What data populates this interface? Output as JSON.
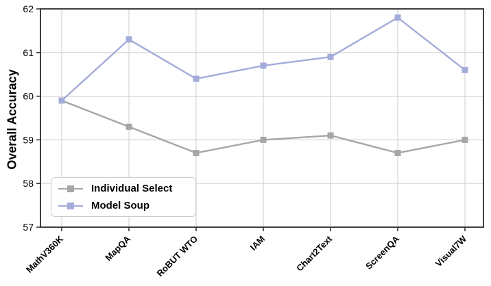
{
  "chart_data": {
    "type": "line",
    "title": "",
    "xlabel": "",
    "ylabel": "Overall Accuracy",
    "categories": [
      "MathV360K",
      "MapQA",
      "RoBUT WTO",
      "IAM",
      "Chart2Text",
      "ScreenQA",
      "Visual7W"
    ],
    "series": [
      {
        "name": "Individual Select",
        "color": "#a6a6a6",
        "values": [
          59.9,
          59.3,
          58.7,
          59.0,
          59.1,
          58.7,
          59.0
        ]
      },
      {
        "name": "Model Soup",
        "color": "#a3abd9",
        "values": [
          59.9,
          61.3,
          60.4,
          60.7,
          60.9,
          61.8,
          60.6
        ]
      }
    ],
    "ylim": [
      57,
      62
    ],
    "yticks": [
      57,
      58,
      59,
      60,
      61,
      62
    ],
    "grid": true,
    "grid_color": "#d4d4d4",
    "spine_color": "#2b2b2b",
    "marker": "square",
    "legend_position": "lower left",
    "x_tick_rotation_deg": 45
  }
}
